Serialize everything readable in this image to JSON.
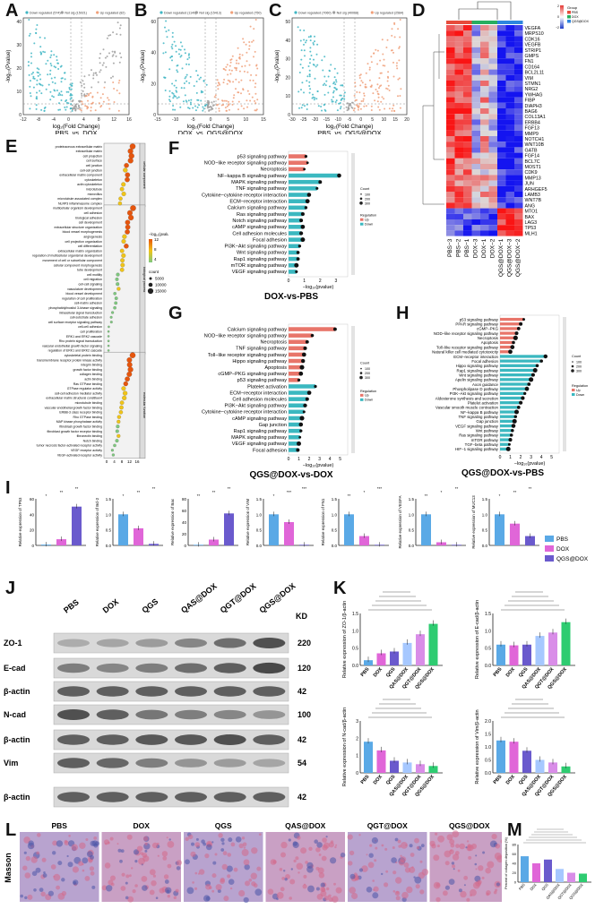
{
  "labels": {
    "A": "A",
    "B": "B",
    "C": "C",
    "D": "D",
    "E": "E",
    "F": "F",
    "G": "G",
    "H": "H",
    "I": "I",
    "J": "J",
    "K": "K",
    "L": "L",
    "M": "M"
  },
  "volcano": [
    {
      "title": "PBS_vs_DOX",
      "legend": [
        "Down regulated (574)",
        "Not sig (15021)",
        "Up regulated (82)"
      ],
      "xlabel": "log₂(Fold Change)",
      "ylabel": "-log₁₀(Pvalue)",
      "xticks": [
        "-12",
        "-8",
        "-4",
        "0",
        "4",
        "8",
        "12",
        "16"
      ],
      "yticks": [
        "0",
        "10",
        "20",
        "30",
        "40"
      ]
    },
    {
      "title": "DOX_vs_QGS@DOX",
      "legend": [
        "Down regulated (1149)",
        "Not sig (15413)",
        "Up regulated (750)"
      ],
      "xlabel": "log₂(Fold Change)",
      "ylabel": "-log₁₀(Pvalue)",
      "xticks": [
        "-15",
        "-10",
        "-5",
        "0",
        "5",
        "10",
        "15"
      ],
      "yticks": [
        "0",
        "20",
        "40",
        "60"
      ]
    },
    {
      "title": "PBS_vs_QGS@DOX",
      "legend": [
        "Down regulated (7060)",
        "Not sig (40068)",
        "Up regulated (2584)"
      ],
      "xlabel": "log₂(Fold Change)",
      "ylabel": "-log₁₀(Pvalue)",
      "xticks": [
        "-30",
        "-25",
        "-20",
        "-15",
        "-10",
        "-5",
        "0",
        "5",
        "10",
        "15",
        "20"
      ],
      "yticks": [
        "0",
        "10",
        "20",
        "30",
        "40",
        "50"
      ]
    }
  ],
  "colors": {
    "down": "#41b6c4",
    "notsig": "#9e9e9e",
    "up": "#f0a07a",
    "pbs": "#5aa9e6",
    "dox": "#e066d8",
    "qgsdox": "#6a5acd",
    "bar_f": "#e8756a",
    "bar_f2": "#3bb8c0"
  },
  "heatmap": {
    "genes": [
      "VEGFA",
      "MRPS10",
      "CDK16",
      "VEGFB",
      "STRIP1",
      "GMPS",
      "FN1",
      "CD164",
      "BCL2L11",
      "VIM",
      "STMN1",
      "NRG2",
      "YWHAG",
      "FIBP",
      "DIAPH3",
      "BAG6",
      "COL13A1",
      "ERBB4",
      "FGF13",
      "MMP9",
      "NOTCH1",
      "WNT10B",
      "GATB",
      "FGF14",
      "BCL7C",
      "MOST1",
      "CDK9",
      "MMP13",
      "JUN",
      "ARHGEF5",
      "LAMB3",
      "WNT7B",
      "ANG",
      "MTO1",
      "BAX",
      "LAG3",
      "TP53",
      "MLH1"
    ],
    "samples": [
      "PBS−3",
      "PBS−2",
      "PBS−1",
      "DOX−3",
      "DOX−1",
      "DOX−2",
      "QGS@DOX−1",
      "QGS@DOX−3",
      "QGS@DOX−2"
    ],
    "legend_title": "Group",
    "legend_items": [
      "PBS",
      "DOX",
      "QGS@DOX"
    ],
    "scale": [
      "2",
      "0",
      "−2"
    ]
  },
  "go": {
    "groups": [
      "cellular component",
      "biological process",
      "molecular function"
    ],
    "terms": [
      "proteinaceous extracellular matrix",
      "extracellular matrix",
      "cell projection",
      "cell surface",
      "cell junction",
      "cell-cell junction",
      "extracellular matrix component",
      "cytoskeleton",
      "actin cytoskeleton",
      "microtubule",
      "microvillus",
      "microtubule associated complex",
      "NLRP3 inflammasome complex",
      "multicellular organism development",
      "cell adhesion",
      "biological adhesion",
      "cell development",
      "extracellular structure organization",
      "blood vessel morphogenesis",
      "angiogenesis",
      "cell projection organization",
      "cell differentiation",
      "extracellular matrix organization",
      "regulation of multicellular organismal development",
      "movement of cell or subcellular component",
      "cellular component morphogenesis",
      "tube development",
      "cell motility",
      "cell migration",
      "cell-cell signaling",
      "vasculature development",
      "blood vessel development",
      "regulation of cell proliferation",
      "cell-matrix adhesion",
      "phosphatidylinositol 3-kinase signaling",
      "intracellular signal transduction",
      "cell-substrate adhesion",
      "cell surface receptor signaling pathway",
      "cell-cell adhesion",
      "cell proliferation",
      "ERK1 and ERK2 cascade",
      "Rho protein signal transduction",
      "vascular endothelial growth factor signaling",
      "regulation of ERK1 and ERK2 cascade",
      "cytoskeletal protein binding",
      "transmembrane receptor protein kinase activity",
      "integrin binding",
      "growth factor binding",
      "collagen binding",
      "actin binding",
      "Ras GTPase binding",
      "GTPase regulator activity",
      "cell-cell adhesion mediator activity",
      "extracellular matrix structural constituent",
      "microtubule binding",
      "vascular endothelial growth factor binding",
      "ERBB-3 class receptor binding",
      "Rho GTPase binding",
      "MAP kinase phosphatase activity",
      "fibroblast growth factor binding",
      "fibroblast growth factor receptor binding",
      "fibronectin binding",
      "Notch binding",
      "tumor necrosis factor-activated receptor activity",
      "VEGF receptor activity",
      "VEGF-activated receptor activity"
    ],
    "legend_title": "−log₁₀(pvalue)",
    "legend_scale": [
      "12",
      "8",
      "4"
    ],
    "count_title": "count",
    "count_items": [
      "5000",
      "10000",
      "15000"
    ],
    "xticks": [
      "0",
      "4",
      "8",
      "12",
      "16"
    ]
  },
  "kegg_f": {
    "title": "DOX-vs-PBS",
    "xlabel": "−log₁₀(pvalue)",
    "terms": [
      "p53 signaling pathway",
      "NOD−like receptor signaling pathway",
      "Necroptosis",
      "NF−kappa B signaling pathway",
      "MAPK signaling pathway",
      "TNF signaling pathway",
      "Cytokine−cytokine receptor interaction",
      "ECM−receptor interaction",
      "Calcium signaling pathway",
      "Ras signaling pathway",
      "Notch signaling pathway",
      "cAMP signaling pathway",
      "Cell adhesion molecules",
      "Focal adhesion",
      "PI3K−Akt signaling pathway",
      "Wnt signaling pathway",
      "Rap1 signaling pathway",
      "mTOR signaling pathway",
      "VEGF signaling pathway"
    ],
    "values": [
      1.1,
      1.2,
      1.0,
      3.2,
      2.0,
      1.8,
      1.3,
      1.2,
      1.1,
      0.9,
      0.8,
      0.9,
      0.8,
      0.9,
      0.7,
      0.6,
      0.6,
      0.5,
      0.5
    ],
    "up_count": 3,
    "xticks": [
      "0",
      "1",
      "2",
      "3"
    ],
    "count_title": "Count",
    "count_items": [
      "100",
      "200",
      "300"
    ],
    "reg_title": "Regulation",
    "reg_items": [
      "Up",
      "Down"
    ]
  },
  "kegg_g": {
    "title": "QGS@DOX-vs-DOX",
    "xlabel": "−log₁₀(pvalue)",
    "terms": [
      "Calcium signaling pathway",
      "NOD−like receptor signaling pathway",
      "Necroptosis",
      "TNF signaling pathway",
      "Toll−like receptor signaling pathway",
      "Hippo signaling pathway",
      "Apoptosis",
      "cGMP−PKG signaling pathway",
      "p53 signaling pathway",
      "Platelet activation",
      "ECM−receptor interaction",
      "Cell adhesion molecules",
      "PI3K−Akt signaling pathway",
      "Cytokine−cytokine receptor interaction",
      "cAMP signaling pathway",
      "Gap junction",
      "Rap1 signaling pathway",
      "MAPK signaling pathway",
      "VEGF signaling pathway",
      "Focal adhesion"
    ],
    "values": [
      4.5,
      2.3,
      1.8,
      1.6,
      1.5,
      1.4,
      1.3,
      1.2,
      1.0,
      2.6,
      2.0,
      1.8,
      1.6,
      1.5,
      1.3,
      1.2,
      1.2,
      1.1,
      1.0,
      0.9
    ],
    "up_count": 9,
    "xticks": [
      "0",
      "1",
      "2",
      "3",
      "4",
      "5"
    ],
    "count_title": "Count",
    "count_items": [
      "100",
      "200",
      "300"
    ],
    "reg_title": "Regulation",
    "reg_items": [
      "Up",
      "Down"
    ]
  },
  "kegg_h": {
    "title": "QGS@DOX-vs-PBS",
    "xlabel": "−log₁₀(pvalue)",
    "terms": [
      "p53 signaling pathway",
      "PPAR signaling pathway",
      "cGMP−PKG",
      "NOD−like receptor signaling pathway",
      "Necroptosis",
      "Apoptosis",
      "Toll−like receptor signaling pathway",
      "Natural killer cell mediated cytotoxicity",
      "ECM−receptor interaction",
      "Focal adhesion",
      "Hippo signaling pathway",
      "Rap1 signaling pathway",
      "Wnt signaling pathway",
      "Apelin signaling pathway",
      "Axon guidance",
      "Phospholipase D pathway",
      "PI3K−Akt signaling pathway",
      "Aldosterone synthesis and secretion",
      "Platelet activation",
      "Vascular smooth muscle contraction",
      "NF−kappa B pathway",
      "TNF signaling pathway",
      "Gap junction",
      "VEGF signaling pathway",
      "Wnt pathway",
      "Ras signaling pathway",
      "mTOR pathway",
      "TGF−beta pathway",
      "HIF−1 signaling pathway"
    ],
    "values": [
      2.3,
      2.0,
      1.8,
      1.6,
      1.5,
      1.3,
      1.2,
      1.0,
      4.4,
      4.0,
      3.6,
      3.4,
      3.2,
      3.0,
      2.8,
      2.6,
      2.4,
      2.2,
      2.0,
      1.8,
      1.6,
      1.5,
      1.4,
      1.3,
      1.2,
      1.1,
      1.0,
      0.9,
      0.8
    ],
    "up_count": 8,
    "xticks": [
      "0",
      "1",
      "2",
      "3",
      "4",
      "5"
    ],
    "count_title": "Count",
    "count_items": [
      "100",
      "200",
      "300"
    ],
    "reg_title": "Regulation",
    "reg_items": [
      "Up",
      "Down"
    ]
  },
  "panel_i": {
    "ylabels": [
      "Relative expression of TP53",
      "Relative expression of Bcl-2",
      "Relative expression of Bax",
      "Relative expression of VIM",
      "Relative expression of FN1",
      "Relative expression of VEGFA",
      "Relative expression of MUC13"
    ],
    "yticks": [
      [
        "0",
        "20",
        "40",
        "60"
      ],
      [
        "0.0",
        "0.5",
        "1.0",
        "1.5"
      ],
      [
        "0",
        "20",
        "40",
        "60",
        "80"
      ],
      [
        "0.0",
        "0.5",
        "1.0",
        "1.5"
      ],
      [
        "0.0",
        "0.5",
        "1.0",
        "1.5"
      ],
      [
        "0.0",
        "0.5",
        "1.0",
        "1.5"
      ],
      [
        "0.0",
        "0.5",
        "1.0",
        "1.5"
      ]
    ],
    "maxes": [
      60,
      1.5,
      80,
      1.5,
      1.5,
      1.5,
      1.5
    ],
    "values": [
      [
        1,
        8,
        50
      ],
      [
        1.0,
        0.55,
        0.05
      ],
      [
        1,
        10,
        55
      ],
      [
        1.0,
        0.75,
        0.02
      ],
      [
        1.0,
        0.3,
        0.02
      ],
      [
        1.0,
        0.1,
        0.02
      ],
      [
        1.0,
        0.7,
        0.3
      ]
    ],
    "sig": [
      [
        "*",
        "**",
        "**"
      ],
      [
        "*",
        "**",
        "**"
      ],
      [
        "**",
        "**",
        "**"
      ],
      [
        "*",
        "***",
        "***"
      ],
      [
        "**",
        "*",
        "***"
      ],
      [
        "**",
        "*",
        "**"
      ],
      [
        "*",
        "**",
        "**"
      ]
    ],
    "legend": [
      "PBS",
      "DOX",
      "QGS@DOX"
    ]
  },
  "panel_j": {
    "columns": [
      "PBS",
      "DOX",
      "QGS",
      "QAS@DOX",
      "QGT@DOX",
      "QGS@DOX"
    ],
    "kd_title": "KD",
    "rows": [
      {
        "name": "ZO-1",
        "kd": "220"
      },
      {
        "name": "E-cad",
        "kd": "120"
      },
      {
        "name": "β-actin",
        "kd": "42"
      },
      {
        "name": "N-cad",
        "kd": "100"
      },
      {
        "name": "β-actin",
        "kd": "42"
      },
      {
        "name": "Vim",
        "kd": "54"
      },
      {
        "name": "β-actin",
        "kd": "42"
      }
    ]
  },
  "panel_k": {
    "categories": [
      "PBS",
      "DOX",
      "QGS",
      "QAS@DOX",
      "QGT@DOX",
      "QGS@DOX"
    ],
    "charts": [
      {
        "ylabel": "Relative expression of ZO-1/β-actin",
        "yticks": [
          "0.0",
          "0.5",
          "1.0",
          "1.5"
        ],
        "max": 1.5,
        "values": [
          0.15,
          0.35,
          0.4,
          0.65,
          0.9,
          1.2
        ]
      },
      {
        "ylabel": "Relative expression of E-cad/β-actin",
        "yticks": [
          "0.0",
          "0.5",
          "1.0",
          "1.5"
        ],
        "max": 1.5,
        "values": [
          0.6,
          0.58,
          0.6,
          0.85,
          0.95,
          1.25
        ]
      },
      {
        "ylabel": "Relative expression of N-cad/β-actin",
        "yticks": [
          "0",
          "1",
          "2",
          "3"
        ],
        "max": 3,
        "values": [
          1.8,
          1.3,
          0.7,
          0.6,
          0.5,
          0.4
        ]
      },
      {
        "ylabel": "Relative expression of Vim/β-actin",
        "yticks": [
          "0.0",
          "0.5",
          "1.0",
          "1.5",
          "2.0"
        ],
        "max": 2,
        "values": [
          1.25,
          1.2,
          0.85,
          0.5,
          0.4,
          0.25
        ]
      }
    ],
    "colors": [
      "#5aa9e6",
      "#e066d8",
      "#6a5acd",
      "#a6c8ff",
      "#d98de8",
      "#2ecc71"
    ]
  },
  "panel_l": {
    "row_label": "Masson",
    "columns": [
      "PBS",
      "DOX",
      "QGS",
      "QAS@DOX",
      "QGT@DOX",
      "QGS@DOX"
    ]
  },
  "panel_m": {
    "ylabel": "Percent of collagen deposition (%)",
    "categories": [
      "PBS",
      "DOX",
      "QGS",
      "QAS@DOX",
      "QGT@DOX",
      "QGS@DOX"
    ],
    "values": [
      55,
      40,
      48,
      28,
      20,
      18
    ],
    "yticks": [
      "0",
      "20",
      "40",
      "60",
      "80"
    ],
    "max": 80
  },
  "chart_data": [
    {
      "type": "bar",
      "title": "DOX-vs-PBS",
      "xlabel": "−log₁₀(pvalue)",
      "categories": [
        "p53 signaling pathway",
        "NF−kappa B signaling pathway",
        "MAPK signaling pathway"
      ],
      "values": [
        1.1,
        3.2,
        2.0
      ]
    },
    {
      "type": "bar",
      "title": "QGS@DOX-vs-DOX",
      "xlabel": "−log₁₀(pvalue)",
      "categories": [
        "Calcium signaling pathway",
        "Platelet activation"
      ],
      "values": [
        4.5,
        2.6
      ]
    },
    {
      "type": "bar",
      "categories": [
        "PBS",
        "DOX",
        "QGS",
        "QAS@DOX",
        "QGT@DOX",
        "QGS@DOX"
      ],
      "series": [
        {
          "values": [
            55,
            40,
            48,
            28,
            20,
            18
          ]
        }
      ],
      "ylabel": "Percent of collagen deposition (%)",
      "ylim": [
        0,
        80
      ]
    }
  ]
}
